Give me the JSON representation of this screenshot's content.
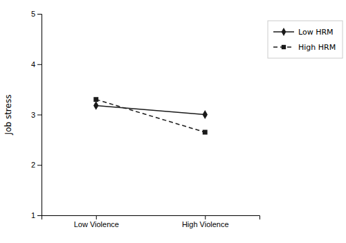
{
  "chart_data": {
    "type": "line",
    "ylabel": "Job stress",
    "categories": [
      "Low Violence",
      "High Violence"
    ],
    "series": [
      {
        "name": "Low HRM",
        "color": "#1a1a1a",
        "marker": "diamond",
        "line_style": "solid",
        "values": [
          3.18,
          3.0
        ]
      },
      {
        "name": "High HRM",
        "color": "#1a1a1a",
        "marker": "square",
        "line_style": "dashed",
        "values": [
          3.3,
          2.65
        ]
      }
    ],
    "ylim": [
      1,
      5
    ],
    "yticks": [
      1,
      2,
      3,
      4,
      5
    ],
    "grid": false,
    "legend": "right"
  }
}
